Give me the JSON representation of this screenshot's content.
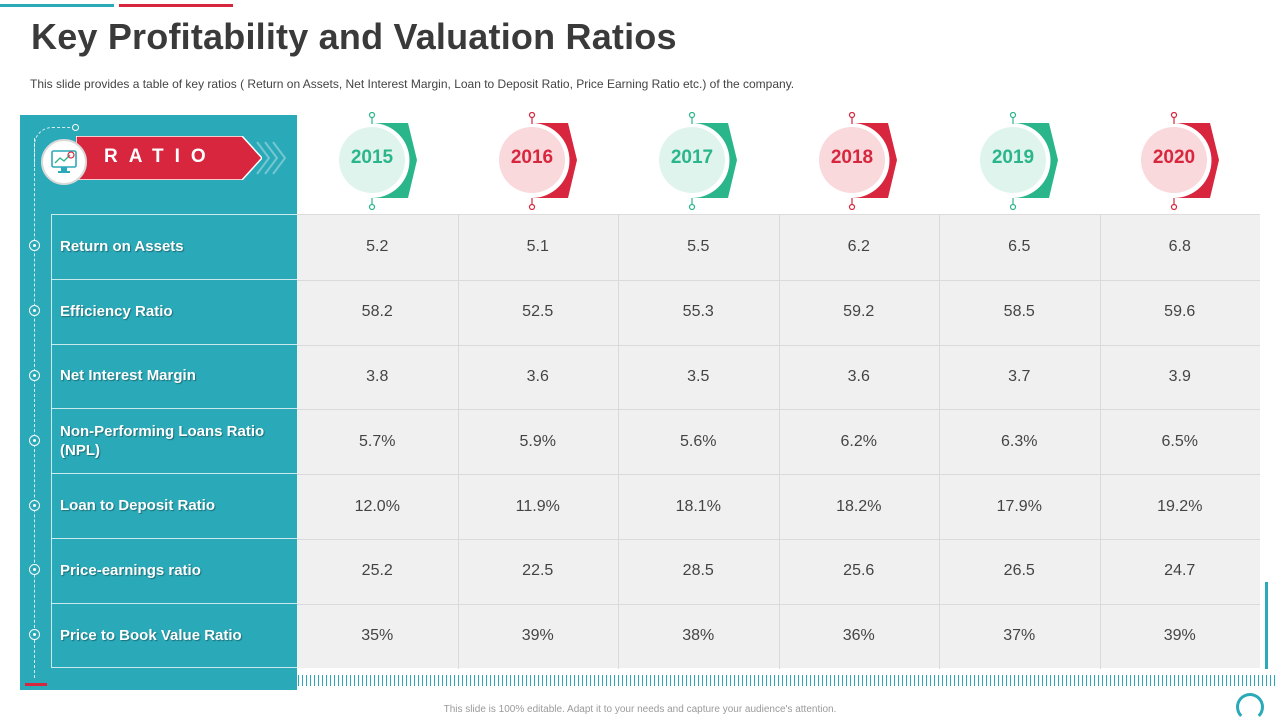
{
  "title": "Key Profitability and Valuation Ratios",
  "subtitle": "This slide provides  a table of key ratios ( Return  on Assets, Net Interest Margin, Loan to Deposit Ratio, Price Earning Ratio etc.) of the company.",
  "header_label": "RATIO",
  "years": [
    "2015",
    "2016",
    "2017",
    "2018",
    "2019",
    "2020"
  ],
  "rows": [
    {
      "label": "Return on Assets",
      "values": [
        "5.2",
        "5.1",
        "5.5",
        "6.2",
        "6.5",
        "6.8"
      ]
    },
    {
      "label": "Efficiency Ratio",
      "values": [
        "58.2",
        "52.5",
        "55.3",
        "59.2",
        "58.5",
        "59.6"
      ]
    },
    {
      "label": "Net Interest  Margin",
      "values": [
        "3.8",
        "3.6",
        "3.5",
        "3.6",
        "3.7",
        "3.9"
      ]
    },
    {
      "label": "Non-Performing Loans Ratio (NPL)",
      "values": [
        "5.7%",
        "5.9%",
        "5.6%",
        "6.2%",
        "6.3%",
        "6.5%"
      ]
    },
    {
      "label": "Loan to Deposit Ratio",
      "values": [
        "12.0%",
        "11.9%",
        "18.1%",
        "18.2%",
        "17.9%",
        "19.2%"
      ]
    },
    {
      "label": "Price-earnings ratio",
      "values": [
        "25.2",
        "22.5",
        "28.5",
        "25.6",
        "26.5",
        "24.7"
      ]
    },
    {
      "label": "Price to Book Value Ratio",
      "values": [
        "35%",
        "39%",
        "38%",
        "36%",
        "37%",
        "39%"
      ]
    }
  ],
  "footer": "This slide is 100% editable. Adapt it to your needs and capture your audience's attention.",
  "colors": {
    "teal": "#2aa9b8",
    "red": "#d7263d",
    "green": "#2bb58b",
    "green_light": "#dff4ec",
    "red_light": "#f9d9dc"
  },
  "icons": {
    "header": "chart-monitor-icon"
  }
}
